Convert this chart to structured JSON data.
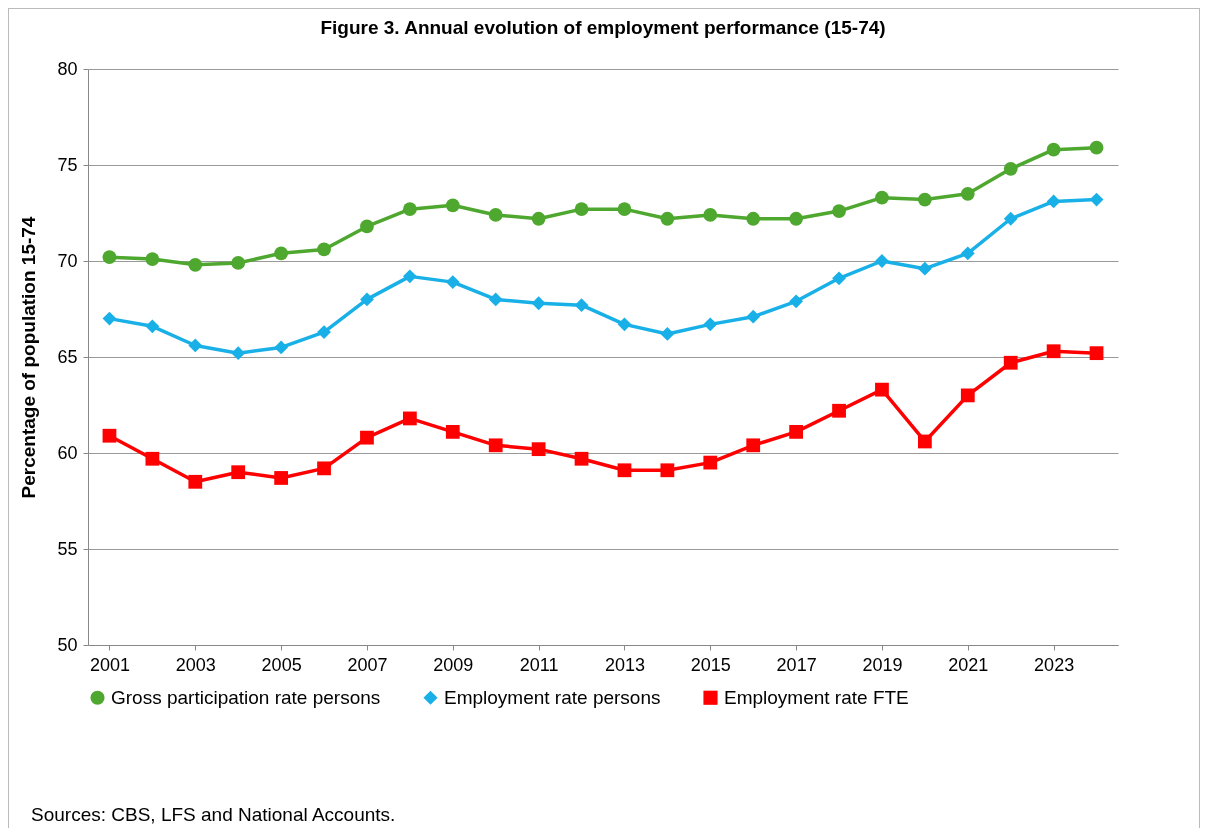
{
  "chart_data": {
    "type": "line",
    "title": "Figure 3. Annual evolution of employment performance (15-74)",
    "ylabel": "Percentage of population 15-74",
    "x": [
      2001,
      2002,
      2003,
      2004,
      2005,
      2006,
      2007,
      2008,
      2009,
      2010,
      2011,
      2012,
      2013,
      2014,
      2015,
      2016,
      2017,
      2018,
      2019,
      2020,
      2021,
      2022,
      2023,
      2024
    ],
    "xlim": [
      2000.5,
      2024.5
    ],
    "xticks": [
      2001,
      2003,
      2005,
      2007,
      2009,
      2011,
      2013,
      2015,
      2017,
      2019,
      2021,
      2023
    ],
    "ylim": [
      50,
      80
    ],
    "yticks": [
      50,
      55,
      60,
      65,
      70,
      75,
      80
    ],
    "grid": "y",
    "legend": "bottom",
    "line_style": "solid",
    "series": [
      {
        "name": "Gross participation rate persons",
        "color": "#4ea72e",
        "marker": "circle",
        "values": [
          70.2,
          70.1,
          69.8,
          69.9,
          70.4,
          70.6,
          71.8,
          72.7,
          72.9,
          72.4,
          72.2,
          72.7,
          72.7,
          72.2,
          72.4,
          72.2,
          72.2,
          72.6,
          73.3,
          73.2,
          73.5,
          74.8,
          75.8,
          75.9
        ]
      },
      {
        "name": "Employment rate persons",
        "color": "#19b0e8",
        "marker": "diamond",
        "values": [
          67.0,
          66.6,
          65.6,
          65.2,
          65.5,
          66.3,
          68.0,
          69.2,
          68.9,
          68.0,
          67.8,
          67.7,
          66.7,
          66.2,
          66.7,
          67.1,
          67.9,
          69.1,
          70.0,
          69.6,
          70.4,
          72.2,
          73.1,
          73.2
        ]
      },
      {
        "name": "Employment rate FTE",
        "color": "#ff0000",
        "marker": "square",
        "values": [
          60.9,
          59.7,
          58.5,
          59.0,
          58.7,
          59.2,
          60.8,
          61.8,
          61.1,
          60.4,
          60.2,
          59.7,
          59.1,
          59.1,
          59.5,
          60.4,
          61.1,
          62.2,
          63.3,
          60.6,
          63.0,
          64.7,
          65.3,
          65.2
        ]
      }
    ],
    "annotations": [
      "Sources: CBS, LFS and National Accounts."
    ]
  }
}
